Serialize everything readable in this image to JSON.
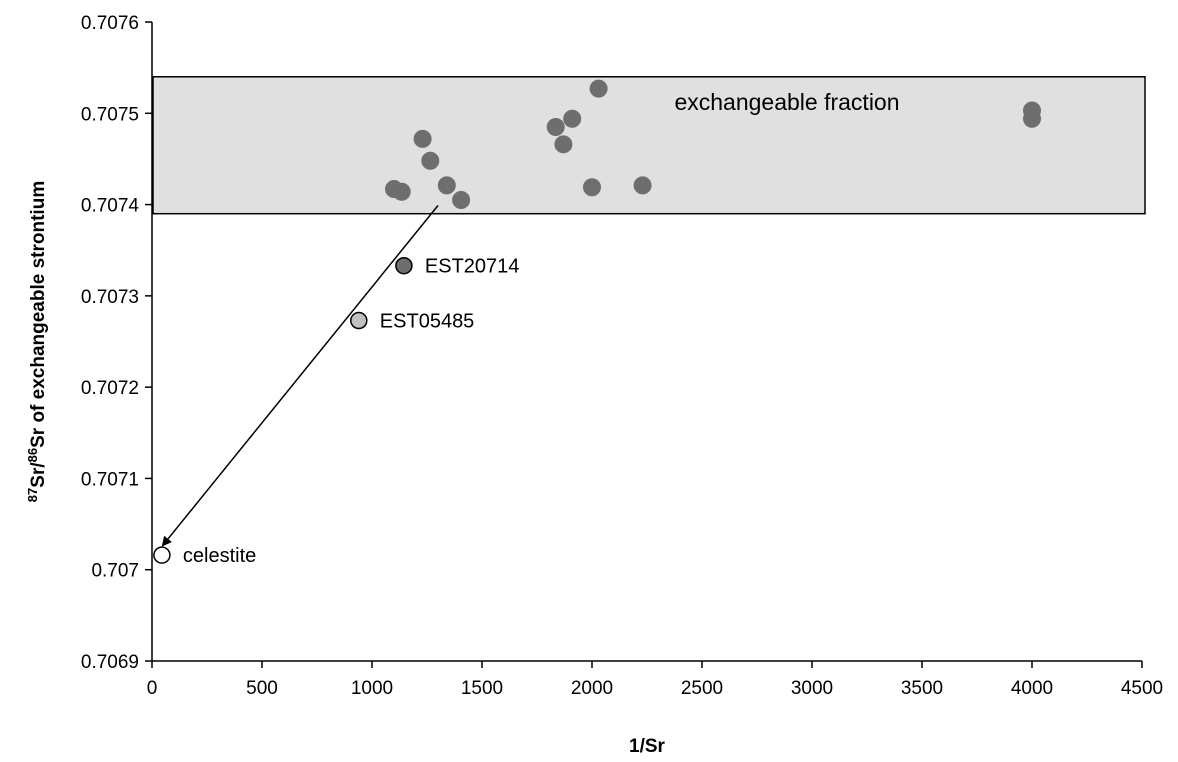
{
  "chart_data": {
    "type": "scatter",
    "xlabel": "1/Sr",
    "ylabel": {
      "sup1": "87",
      "part1": "Sr/",
      "sup2": "86",
      "part2": "Sr of exchangeable strontium"
    },
    "xlim": [
      0,
      4500
    ],
    "ylim": [
      0.7069,
      0.7076
    ],
    "x_ticks": [
      0,
      500,
      1000,
      1500,
      2000,
      2500,
      3000,
      3500,
      4000,
      4500
    ],
    "x_tick_labels": [
      "0",
      "500",
      "1000",
      "1500",
      "2000",
      "2500",
      "3000",
      "3500",
      "4000",
      "4500"
    ],
    "y_ticks": [
      0.7069,
      0.707,
      0.7071,
      0.7072,
      0.7073,
      0.7074,
      0.7075,
      0.7076
    ],
    "y_tick_labels": [
      "0.7069",
      "0.707",
      "0.7071",
      "0.7072",
      "0.7073",
      "0.7074",
      "0.7075",
      "0.7076"
    ],
    "grid": false,
    "band": {
      "label": "exchangeable fraction",
      "y_range": [
        0.70739,
        0.70754
      ],
      "color": "#e0e0e0"
    },
    "series": [
      {
        "color": "#6e6e6e",
        "points": [
          {
            "x": 1100,
            "y": 0.707417
          },
          {
            "x": 1135,
            "y": 0.707414
          },
          {
            "x": 1230,
            "y": 0.707472
          },
          {
            "x": 1265,
            "y": 0.707448
          },
          {
            "x": 1340,
            "y": 0.707421
          },
          {
            "x": 1405,
            "y": 0.707405
          },
          {
            "x": 1835,
            "y": 0.707485
          },
          {
            "x": 1870,
            "y": 0.707466
          },
          {
            "x": 1910,
            "y": 0.707494
          },
          {
            "x": 2030,
            "y": 0.707527
          },
          {
            "x": 2000,
            "y": 0.707419
          },
          {
            "x": 2230,
            "y": 0.707421
          },
          {
            "x": 4000,
            "y": 0.707503
          },
          {
            "x": 4000,
            "y": 0.707494
          }
        ]
      }
    ],
    "labeled_points": [
      {
        "label": "EST20714",
        "x": 1145,
        "y": 0.707333,
        "color": "#6e6e6e"
      },
      {
        "label": "EST05485",
        "x": 940,
        "y": 0.707273,
        "color": "#c0c0c0"
      },
      {
        "label": "celestite",
        "x": 45,
        "y": 0.707016,
        "color": "#ffffff"
      }
    ],
    "arrow": {
      "from": {
        "x": 1300,
        "y": 0.707399
      },
      "to": {
        "x": 50,
        "y": 0.707027
      }
    }
  }
}
